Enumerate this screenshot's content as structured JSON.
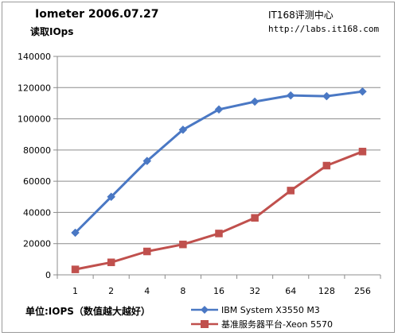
{
  "header": {
    "title": "Iometer 2006.07.27",
    "subtitle": "读取IOps",
    "source_name": "IT168评测中心",
    "source_url": "http://labs.it168.com"
  },
  "footer": {
    "unit_note": "单位:IOPS（数值越大越好）"
  },
  "chart_data": {
    "type": "line",
    "title": "Iometer 2006.07.27",
    "subtitle": "读取IOps",
    "xlabel": "",
    "ylabel": "",
    "categories": [
      "1",
      "2",
      "4",
      "8",
      "16",
      "32",
      "64",
      "128",
      "256"
    ],
    "ylim": [
      0,
      140000
    ],
    "yticks": [
      0,
      20000,
      40000,
      60000,
      80000,
      100000,
      120000,
      140000
    ],
    "grid": true,
    "legend": "bottom-right",
    "series": [
      {
        "name": "IBM System X3550 M3",
        "marker": "diamond",
        "color": "#4a78c4",
        "values": [
          27000,
          50000,
          73000,
          93000,
          106000,
          111000,
          115000,
          114500,
          117500
        ]
      },
      {
        "name": "基准服务器平台-Xeon 5570",
        "marker": "square",
        "color": "#c0504d",
        "values": [
          3500,
          8000,
          15000,
          19500,
          26500,
          36500,
          54000,
          70000,
          79000
        ]
      }
    ]
  }
}
